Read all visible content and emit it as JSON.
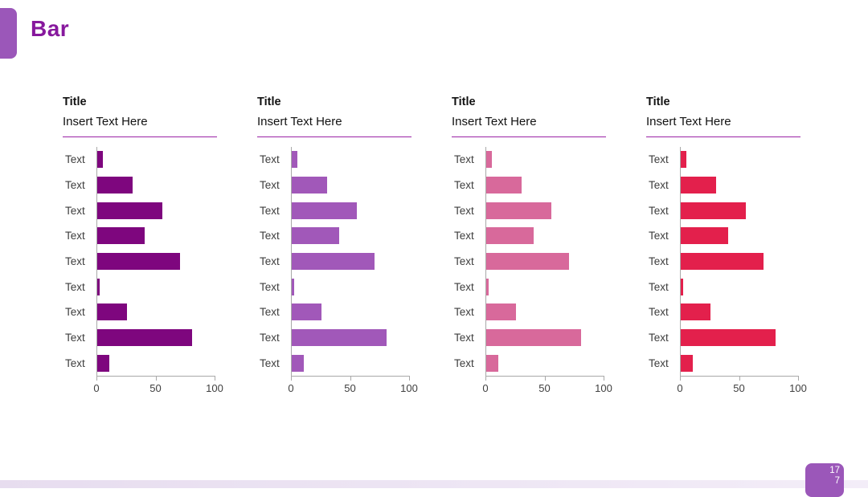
{
  "slide": {
    "header": {
      "title": "Bar",
      "title_color": "#87189D",
      "accent_color": "#9B57B9"
    },
    "page_badge": {
      "line1": "17",
      "line2": "7",
      "background_color": "#9B57B9",
      "text_color": "#FFFFFF"
    },
    "footer_strip_color_left": "#E7DDEF",
    "footer_strip_color_right": "#F3EDF8",
    "axis_color": "#A9A9A9",
    "tick_label_color": "#3F3F3F",
    "category_label_color": "#3D3D3D"
  },
  "chart_data": [
    {
      "type": "bar",
      "orientation": "horizontal",
      "title": "Title",
      "subtitle": "Insert Text Here",
      "underline_color": "#9A23A5",
      "bar_color": "#7E067E",
      "categories": [
        "Text",
        "Text",
        "Text",
        "Text",
        "Text",
        "Text",
        "Text",
        "Text",
        "Text"
      ],
      "values": [
        5,
        30,
        55,
        40,
        70,
        2,
        25,
        80,
        10
      ],
      "xlim": [
        0,
        100
      ],
      "xticks": [
        0,
        50,
        100
      ],
      "grid": false,
      "legend": false
    },
    {
      "type": "bar",
      "orientation": "horizontal",
      "title": "Title",
      "subtitle": "Insert Text Here",
      "underline_color": "#9A23A5",
      "bar_color": "#A158B9",
      "categories": [
        "Text",
        "Text",
        "Text",
        "Text",
        "Text",
        "Text",
        "Text",
        "Text",
        "Text"
      ],
      "values": [
        5,
        30,
        55,
        40,
        70,
        2,
        25,
        80,
        10
      ],
      "xlim": [
        0,
        100
      ],
      "xticks": [
        0,
        50,
        100
      ],
      "grid": false,
      "legend": false
    },
    {
      "type": "bar",
      "orientation": "horizontal",
      "title": "Title",
      "subtitle": "Insert Text Here",
      "underline_color": "#9A23A5",
      "bar_color": "#D8699B",
      "categories": [
        "Text",
        "Text",
        "Text",
        "Text",
        "Text",
        "Text",
        "Text",
        "Text",
        "Text"
      ],
      "values": [
        5,
        30,
        55,
        40,
        70,
        2,
        25,
        80,
        10
      ],
      "xlim": [
        0,
        100
      ],
      "xticks": [
        0,
        50,
        100
      ],
      "grid": false,
      "legend": false
    },
    {
      "type": "bar",
      "orientation": "horizontal",
      "title": "Title",
      "subtitle": "Insert Text Here",
      "underline_color": "#9A23A5",
      "bar_color": "#E3204C",
      "categories": [
        "Text",
        "Text",
        "Text",
        "Text",
        "Text",
        "Text",
        "Text",
        "Text",
        "Text"
      ],
      "values": [
        5,
        30,
        55,
        40,
        70,
        2,
        25,
        80,
        10
      ],
      "xlim": [
        0,
        100
      ],
      "xticks": [
        0,
        50,
        100
      ],
      "grid": false,
      "legend": false
    }
  ]
}
